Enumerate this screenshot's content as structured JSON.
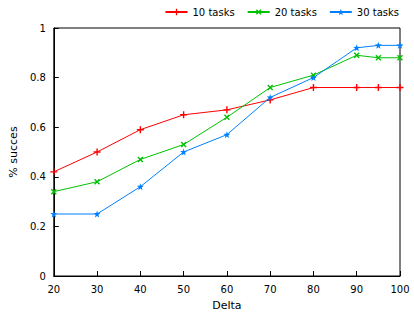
{
  "chart_data": {
    "type": "line",
    "x_label": "Delta",
    "y_label": "% succes",
    "x": [
      20,
      30,
      40,
      50,
      60,
      70,
      80,
      90,
      95,
      100
    ],
    "series": [
      {
        "name": "10 tasks",
        "color": "#ff0000",
        "marker": "plus",
        "line_style": "solid",
        "values": [
          0.42,
          0.5,
          0.59,
          0.65,
          0.67,
          0.71,
          0.76,
          0.76,
          0.76,
          0.76
        ]
      },
      {
        "name": "20 tasks",
        "color": "#00c000",
        "marker": "x",
        "line_style": "solid",
        "values": [
          0.34,
          0.38,
          0.47,
          0.53,
          0.64,
          0.76,
          0.81,
          0.89,
          0.88,
          0.88
        ]
      },
      {
        "name": "30 tasks",
        "color": "#0080ff",
        "marker": "star",
        "line_style": "solid",
        "values": [
          0.25,
          0.25,
          0.36,
          0.5,
          0.57,
          0.72,
          0.8,
          0.92,
          0.93,
          0.93
        ]
      }
    ],
    "xlim": [
      20,
      100
    ],
    "xticks": [
      20,
      30,
      40,
      50,
      60,
      70,
      80,
      90,
      100
    ],
    "ylim": [
      0,
      1
    ],
    "yticks": [
      0,
      0.2,
      0.4,
      0.6,
      0.8,
      1
    ],
    "grid": false,
    "legend": "top-right"
  }
}
